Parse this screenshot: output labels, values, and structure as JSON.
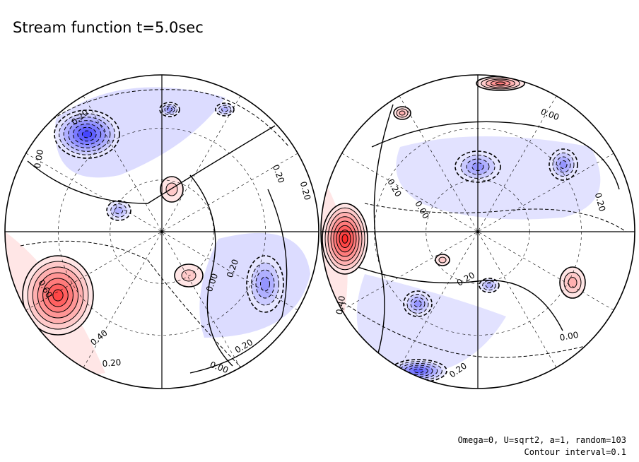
{
  "title": "Stream function t=5.0sec",
  "footnotes": [
    "Omega=0, U=sqrt2, a=1, random=103",
    "Contour interval=0.1"
  ],
  "chart_data": {
    "type": "contour",
    "quantity": "Stream function",
    "time_sec": 5.0,
    "contour_interval": 0.1,
    "colors": {
      "positive": "#ff0000",
      "negative": "#0000ff",
      "zero": "#ffffff"
    },
    "hemispheres": [
      {
        "labels": [
          {
            "text": "0.20"
          },
          {
            "text": "0.00"
          },
          {
            "text": "0.20"
          },
          {
            "text": "0.20"
          },
          {
            "text": "0.20"
          },
          {
            "text": "0.60"
          },
          {
            "text": "0.40"
          },
          {
            "text": "0.20"
          },
          {
            "text": "0.00"
          },
          {
            "text": "0.20"
          },
          {
            "text": "0.00"
          }
        ],
        "extrema": [
          {
            "sign": "neg",
            "value": -0.7
          },
          {
            "sign": "neg",
            "value": -0.4
          },
          {
            "sign": "neg",
            "value": -0.3
          },
          {
            "sign": "neg",
            "value": -0.3
          },
          {
            "sign": "neg",
            "value": -0.4
          },
          {
            "sign": "pos",
            "value": 0.7
          },
          {
            "sign": "pos",
            "value": 0.2
          },
          {
            "sign": "pos",
            "value": 0.2
          },
          {
            "sign": "pos",
            "value": 0.3
          }
        ]
      },
      {
        "labels": [
          {
            "text": "0.00"
          },
          {
            "text": "0.20"
          },
          {
            "text": "0.00"
          },
          {
            "text": "0.20"
          },
          {
            "text": "0.20"
          },
          {
            "text": "0.00"
          },
          {
            "text": "0.20"
          },
          {
            "text": "0.40"
          }
        ],
        "extrema": [
          {
            "sign": "pos",
            "value": 0.8
          },
          {
            "sign": "pos",
            "value": 0.5
          },
          {
            "sign": "pos",
            "value": 0.3
          },
          {
            "sign": "pos",
            "value": 0.2
          },
          {
            "sign": "pos",
            "value": 0.3
          },
          {
            "sign": "neg",
            "value": -0.4
          },
          {
            "sign": "neg",
            "value": -0.4
          },
          {
            "sign": "neg",
            "value": -0.4
          },
          {
            "sign": "neg",
            "value": -0.6
          },
          {
            "sign": "neg",
            "value": -0.3
          }
        ]
      }
    ]
  }
}
